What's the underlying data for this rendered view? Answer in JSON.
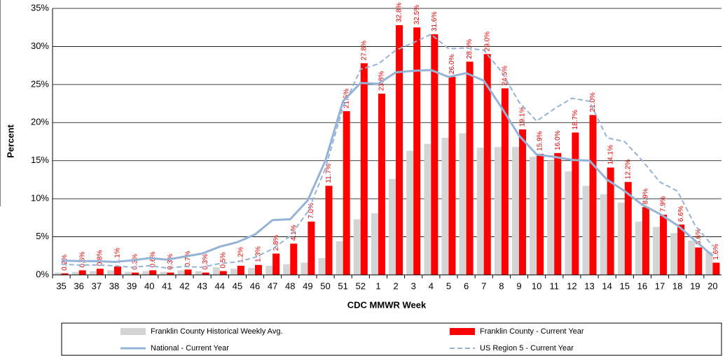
{
  "chart_data": {
    "type": "bar",
    "x_label": "CDC MMWR Week",
    "y_label": "Percent",
    "categories": [
      "35",
      "36",
      "37",
      "38",
      "39",
      "40",
      "41",
      "42",
      "43",
      "44",
      "45",
      "46",
      "47",
      "48",
      "49",
      "50",
      "51",
      "52",
      "1",
      "2",
      "3",
      "4",
      "5",
      "6",
      "7",
      "8",
      "9",
      "10",
      "11",
      "12",
      "13",
      "14",
      "15",
      "16",
      "17",
      "18",
      "19",
      "20"
    ],
    "ylim": [
      0,
      35
    ],
    "yticks": [
      {
        "value": 0,
        "label": "0%"
      },
      {
        "value": 5,
        "label": "5%"
      },
      {
        "value": 10,
        "label": "10%"
      },
      {
        "value": 15,
        "label": "15%"
      },
      {
        "value": 20,
        "label": "20%"
      },
      {
        "value": 25,
        "label": "25%"
      },
      {
        "value": 30,
        "label": "30%"
      },
      {
        "value": 35,
        "label": "35%"
      }
    ],
    "grid": true,
    "legend": "bottom",
    "series": [
      {
        "name": "Franklin County Historical Weekly Avg.",
        "type": "bar",
        "color": "#d4d4d4",
        "values": [
          0.3,
          0.4,
          0.5,
          0.6,
          0.4,
          0.5,
          0.4,
          0.6,
          0.5,
          1.0,
          0.8,
          0.9,
          1.2,
          1.4,
          1.6,
          2.2,
          4.4,
          7.3,
          8.1,
          12.6,
          16.3,
          17.2,
          18.0,
          18.6,
          16.7,
          16.8,
          16.8,
          15.5,
          15.0,
          13.6,
          11.7,
          10.6,
          9.5,
          7.0,
          6.3,
          5.5,
          4.5,
          3.0
        ]
      },
      {
        "name": "Franklin County - Current Year",
        "type": "bar",
        "color": "#ff0000",
        "values": [
          0.2,
          0.6,
          0.8,
          1.1,
          0.3,
          0.6,
          0.3,
          0.7,
          0.3,
          0.5,
          1.2,
          1.3,
          2.8,
          4.1,
          7.0,
          11.7,
          21.5,
          27.8,
          23.8,
          32.8,
          32.5,
          31.6,
          26.0,
          28.0,
          29.0,
          24.5,
          19.1,
          15.9,
          16.0,
          18.7,
          21.0,
          14.1,
          12.2,
          8.9,
          7.9,
          6.6,
          3.6,
          1.6
        ],
        "value_labels": [
          "0.2%",
          "0.6%",
          "0.8%",
          "1.1%",
          "0.3%",
          "0.6%",
          "0.3%",
          "0.7%",
          "0.3%",
          "0.5%",
          "1.2%",
          "1.3%",
          "2.8%",
          "4.1%",
          "7.0%",
          "11.7%",
          "21.5%",
          "27.8%",
          "23.8%",
          "32.8%",
          "32.5%",
          "31.6%",
          "26.0%",
          "28.0%",
          "29.0%",
          "24.5%",
          "19.1%",
          "15.9%",
          "16.0%",
          "18.7%",
          "21.0%",
          "14.1%",
          "12.2%",
          "8.9%",
          "7.9%",
          "6.6%",
          "3.6%",
          "1.6%"
        ]
      },
      {
        "name": "National - Current Year",
        "type": "line",
        "color": "#95b3d7",
        "dashed": false,
        "values": [
          1.9,
          1.8,
          1.8,
          1.7,
          1.9,
          2.2,
          2.0,
          2.4,
          2.8,
          3.7,
          4.3,
          5.3,
          7.2,
          7.3,
          9.8,
          15.0,
          22.8,
          25.2,
          25.1,
          26.6,
          26.8,
          26.9,
          26.0,
          26.5,
          25.5,
          22.0,
          18.3,
          15.8,
          15.5,
          15.1,
          15.0,
          12.5,
          11.0,
          9.2,
          8.0,
          6.5,
          4.5,
          2.5
        ]
      },
      {
        "name": "US Region 5 - Current Year",
        "type": "line",
        "color": "#95b3d7",
        "dashed": true,
        "values": [
          1.4,
          1.3,
          1.3,
          1.2,
          1.0,
          1.2,
          0.9,
          1.1,
          1.0,
          1.5,
          1.7,
          2.3,
          3.4,
          5.1,
          8.3,
          14.0,
          22.0,
          27.0,
          27.7,
          29.5,
          30.5,
          31.6,
          29.7,
          29.8,
          29.5,
          26.7,
          22.7,
          20.2,
          21.8,
          23.2,
          22.8,
          18.0,
          17.5,
          15.0,
          12.2,
          11.0,
          6.5,
          3.8
        ]
      }
    ]
  }
}
